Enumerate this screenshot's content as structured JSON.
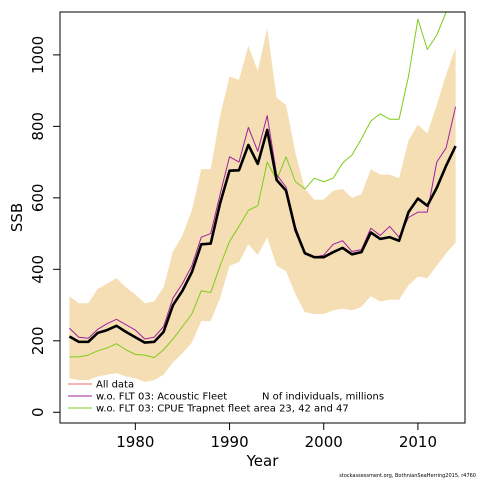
{
  "chart_data": {
    "type": "line",
    "xlabel": "Year",
    "ylabel": "SSB",
    "xlim": [
      1972,
      2015
    ],
    "ylim": [
      -30,
      1120
    ],
    "x_ticks": [
      1980,
      1990,
      2000,
      2010
    ],
    "y_ticks": [
      0,
      200,
      400,
      600,
      800,
      1000
    ],
    "colors": {
      "band": "#f5deb3",
      "all_data": "#000000",
      "all_data_legend": "#ee6a6a",
      "acoustic": "#a020a0",
      "cpue": "#7ccd19"
    },
    "band": {
      "x": [
        1973,
        1974,
        1975,
        1976,
        1977,
        1978,
        1979,
        1980,
        1981,
        1982,
        1983,
        1984,
        1985,
        1986,
        1987,
        1988,
        1989,
        1990,
        1991,
        1992,
        1993,
        1994,
        1995,
        1996,
        1997,
        1998,
        1999,
        2000,
        2001,
        2002,
        2003,
        2004,
        2005,
        2006,
        2007,
        2008,
        2009,
        2010,
        2011,
        2012,
        2013,
        2014
      ],
      "lower": [
        95,
        90,
        90,
        100,
        105,
        110,
        100,
        95,
        85,
        90,
        105,
        140,
        165,
        195,
        255,
        255,
        320,
        410,
        420,
        470,
        440,
        490,
        410,
        395,
        330,
        280,
        275,
        275,
        285,
        290,
        285,
        295,
        325,
        310,
        315,
        315,
        355,
        380,
        375,
        410,
        445,
        475
      ],
      "upper": [
        325,
        305,
        305,
        345,
        360,
        375,
        350,
        330,
        305,
        310,
        350,
        450,
        495,
        565,
        680,
        680,
        830,
        940,
        930,
        1025,
        955,
        1075,
        880,
        860,
        725,
        625,
        595,
        595,
        620,
        625,
        600,
        610,
        680,
        665,
        665,
        655,
        760,
        805,
        780,
        860,
        945,
        1020
      ]
    },
    "series": [
      {
        "name": "All data",
        "x": [
          1973,
          1974,
          1975,
          1976,
          1977,
          1978,
          1979,
          1980,
          1981,
          1982,
          1983,
          1984,
          1985,
          1986,
          1987,
          1988,
          1989,
          1990,
          1991,
          1992,
          1993,
          1994,
          1995,
          1996,
          1997,
          1998,
          1999,
          2000,
          2001,
          2002,
          2003,
          2004,
          2005,
          2006,
          2007,
          2008,
          2009,
          2010,
          2011,
          2012,
          2013,
          2014
        ],
        "values": [
          212,
          197,
          197,
          222,
          230,
          242,
          225,
          210,
          195,
          197,
          225,
          300,
          340,
          392,
          470,
          472,
          585,
          676,
          677,
          748,
          695,
          790,
          650,
          620,
          510,
          445,
          434,
          434,
          448,
          460,
          442,
          448,
          503,
          485,
          490,
          480,
          560,
          598,
          578,
          628,
          690,
          745
        ]
      },
      {
        "name": "w.o. FLT 03: Acoustic Fleet",
        "x": [
          1973,
          1974,
          1975,
          1976,
          1977,
          1978,
          1979,
          1980,
          1981,
          1982,
          1983,
          1984,
          1985,
          1986,
          1987,
          1988,
          1989,
          1990,
          1991,
          1992,
          1993,
          1994,
          1995,
          1996,
          1997,
          1998,
          1999,
          2000,
          2001,
          2002,
          2003,
          2004,
          2005,
          2006,
          2007,
          2008,
          2009,
          2010,
          2011,
          2012,
          2013,
          2014
        ],
        "values": [
          235,
          210,
          207,
          232,
          248,
          260,
          245,
          230,
          205,
          210,
          240,
          320,
          360,
          410,
          490,
          500,
          610,
          715,
          700,
          797,
          730,
          830,
          665,
          630,
          520,
          445,
          433,
          440,
          470,
          480,
          450,
          455,
          515,
          495,
          520,
          490,
          545,
          560,
          560,
          700,
          740,
          855
        ]
      },
      {
        "name": "w.o. FLT 03: CPUE Trapnet fleet area 23, 42 and 47",
        "x": [
          1973,
          1974,
          1975,
          1976,
          1977,
          1978,
          1979,
          1980,
          1981,
          1982,
          1983,
          1984,
          1985,
          1986,
          1987,
          1988,
          1989,
          1990,
          1991,
          1992,
          1993,
          1994,
          1995,
          1996,
          1997,
          1998,
          1999,
          2000,
          2001,
          2002,
          2003,
          2004,
          2005,
          2006,
          2007,
          2008,
          2009,
          2010,
          2011,
          2012,
          2013,
          2014
        ],
        "values": [
          155,
          155,
          160,
          172,
          180,
          192,
          175,
          162,
          160,
          153,
          175,
          205,
          240,
          275,
          340,
          335,
          410,
          478,
          520,
          565,
          578,
          700,
          650,
          715,
          645,
          625,
          655,
          645,
          655,
          697,
          720,
          765,
          815,
          835,
          820,
          820,
          940,
          1100,
          1015,
          1055,
          1120,
          1140
        ]
      }
    ],
    "legend": {
      "placement": "bottom-left",
      "entries": [
        "All data",
        "w.o. FLT 03: Acoustic Fleet",
        "w.o. FLT 03: CPUE Trapnet fleet area 23, 42 and 47"
      ],
      "note": "N of individuals, millions"
    },
    "footer": "stockassessment.org, BothnianSeaHerring2015, r4760"
  }
}
